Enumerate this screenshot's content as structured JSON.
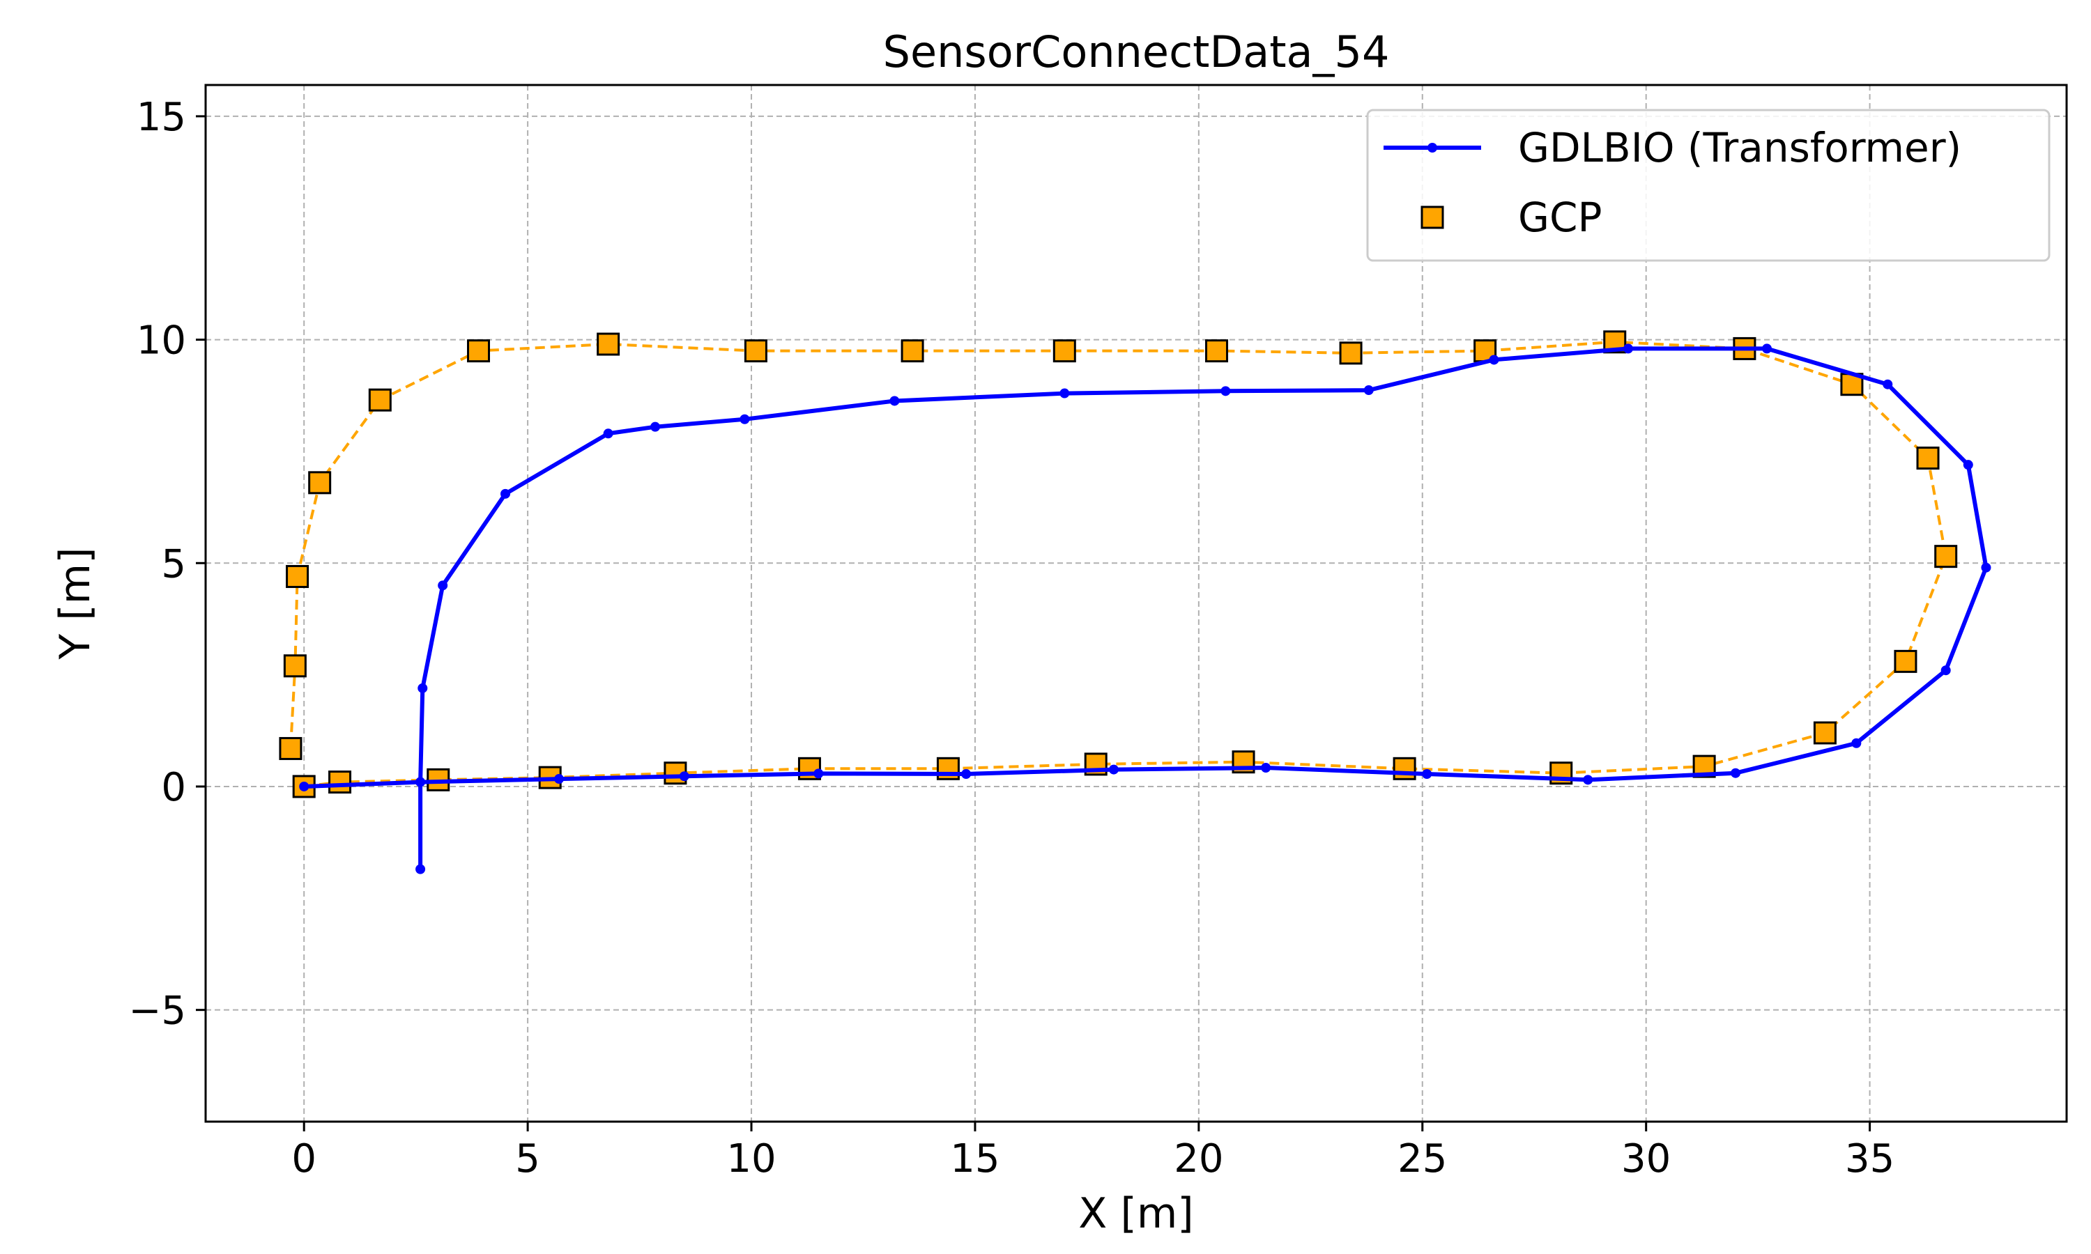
{
  "chart_data": {
    "type": "line",
    "title": "SensorConnectData_54",
    "xlabel": "X [m]",
    "ylabel": "Y [m]",
    "xlim": [
      -2.2,
      39.4
    ],
    "ylim": [
      -7.5,
      15.7
    ],
    "xticks": [
      0,
      5,
      10,
      15,
      20,
      25,
      30,
      35
    ],
    "yticks": [
      -5,
      0,
      5,
      10,
      15
    ],
    "xtick_labels": [
      "0",
      "5",
      "10",
      "15",
      "20",
      "25",
      "30",
      "35"
    ],
    "ytick_labels": [
      "−5",
      "0",
      "5",
      "10",
      "15"
    ],
    "grid": true,
    "legend_position": "top-right",
    "colors": {
      "transformer": "#0000ff",
      "gcp": "#ffa500",
      "grid": "#b0b0b0"
    },
    "series": [
      {
        "name": "GDLBIO (Transformer)",
        "style": "solid line with dot markers",
        "x": [
          2.6,
          2.6,
          2.65,
          3.1,
          4.5,
          6.8,
          7.85,
          9.85,
          13.2,
          17.0,
          20.6,
          23.8,
          26.6,
          29.6,
          32.7,
          35.4,
          37.2,
          37.6,
          36.7,
          34.7,
          32.0,
          28.7,
          25.1,
          21.5,
          18.1,
          14.8,
          11.5,
          8.5,
          5.7,
          2.6,
          0.0
        ],
        "y": [
          -1.85,
          0.1,
          2.2,
          4.5,
          6.55,
          7.9,
          8.05,
          8.22,
          8.63,
          8.8,
          8.85,
          8.87,
          9.55,
          9.8,
          9.8,
          9.0,
          7.2,
          4.9,
          2.6,
          0.97,
          0.3,
          0.15,
          0.28,
          0.42,
          0.38,
          0.28,
          0.29,
          0.23,
          0.17,
          0.1,
          0.0
        ]
      },
      {
        "name": "GCP",
        "style": "square markers, dashed line",
        "x": [
          0.0,
          0.8,
          3.0,
          5.5,
          8.3,
          11.3,
          14.4,
          17.7,
          21.0,
          24.6,
          28.1,
          31.3,
          34.0,
          35.8,
          36.7,
          36.3,
          34.6,
          32.2,
          29.3,
          26.4,
          23.4,
          20.4,
          17.0,
          13.6,
          10.1,
          6.8,
          3.9,
          1.7,
          0.35,
          -0.15,
          -0.2,
          -0.3
        ],
        "y": [
          0.0,
          0.1,
          0.15,
          0.2,
          0.3,
          0.4,
          0.4,
          0.5,
          0.55,
          0.4,
          0.3,
          0.45,
          1.2,
          2.8,
          5.15,
          7.35,
          9.0,
          9.8,
          9.95,
          9.75,
          9.7,
          9.75,
          9.75,
          9.75,
          9.75,
          9.9,
          9.75,
          8.65,
          6.8,
          4.7,
          2.7,
          0.85
        ]
      }
    ]
  }
}
